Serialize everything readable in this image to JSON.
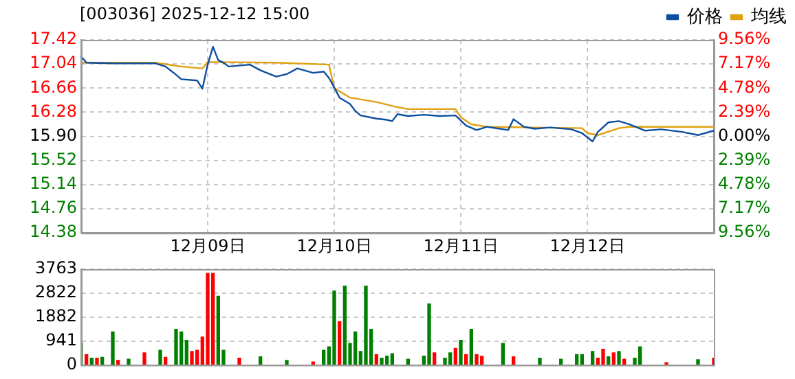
{
  "chart_data": [
    {
      "type": "line",
      "title": "[003036] 2025-12-12 15:00",
      "categories": [
        null,
        null,
        null,
        null,
        null,
        null,
        null,
        null,
        null,
        null,
        null,
        null,
        null,
        null,
        null,
        null,
        null,
        null,
        null,
        null,
        null,
        null,
        null,
        null,
        "12月09日",
        null,
        null,
        null,
        null,
        null,
        null,
        null,
        null,
        null,
        null,
        null,
        null,
        null,
        null,
        null,
        null,
        null,
        null,
        null,
        null,
        null,
        null,
        null,
        "12月10日",
        null,
        null,
        null,
        null,
        null,
        null,
        null,
        null,
        null,
        null,
        null,
        null,
        null,
        null,
        null,
        null,
        null,
        null,
        null,
        null,
        null,
        null,
        null,
        "12月11日",
        null,
        null,
        null,
        null,
        null,
        null,
        null,
        null,
        null,
        null,
        null,
        null,
        null,
        null,
        null,
        null,
        null,
        null,
        null,
        null,
        null,
        null,
        null,
        "12月12日",
        null,
        null,
        null,
        null,
        null,
        null,
        null,
        null,
        null,
        null,
        null,
        null,
        null,
        null,
        null,
        null,
        null,
        null,
        null,
        null,
        null,
        null,
        null,
        null
      ],
      "ylim": [
        14.38,
        17.42
      ],
      "yticks": [
        14.38,
        14.76,
        15.14,
        15.52,
        {
          "value": 15.9,
          "label": "15.90"
        },
        16.28,
        16.66,
        17.04,
        17.42
      ],
      "y2lim": [
        -9.56,
        9.56
      ],
      "y2ticks": [
        {
          "value": -9.56,
          "label": "9.56%"
        },
        {
          "value": -7.17,
          "label": "7.17%"
        },
        {
          "value": -4.78,
          "label": "4.78%"
        },
        {
          "value": -2.39,
          "label": "2.39%"
        },
        {
          "value": 0,
          "label": "0.00%"
        },
        {
          "value": 2.39,
          "label": "2.39%"
        },
        {
          "value": 4.78,
          "label": "4.78%"
        },
        {
          "value": 7.17,
          "label": "7.17%"
        },
        {
          "value": 9.56,
          "label": "9.56%"
        }
      ],
      "grid": true,
      "legend": "top right",
      "marker": "none",
      "series": [
        {
          "name": "价格",
          "color": "#0d4ea0",
          "values": [
            17.16,
            17.06,
            null,
            null,
            null,
            null,
            17.05,
            null,
            null,
            null,
            null,
            null,
            null,
            null,
            17.05,
            null,
            17.0,
            null,
            16.87,
            16.8,
            null,
            null,
            16.78,
            16.65,
            17.03,
            17.31,
            17.1,
            17.06,
            17.0,
            null,
            null,
            null,
            17.03,
            null,
            16.94,
            null,
            null,
            16.84,
            null,
            16.88,
            null,
            16.97,
            null,
            null,
            16.9,
            null,
            16.92,
            16.82,
            16.67,
            16.51,
            null,
            16.41,
            16.3,
            16.23,
            null,
            null,
            16.18,
            null,
            16.16,
            16.14,
            16.25,
            null,
            16.22,
            null,
            null,
            16.24,
            null,
            null,
            16.22,
            null,
            null,
            16.23,
            16.15,
            16.07,
            null,
            16.0,
            null,
            16.05,
            null,
            null,
            null,
            16.0,
            16.17,
            null,
            16.05,
            null,
            16.02,
            null,
            null,
            16.04,
            null,
            null,
            null,
            16.01,
            null,
            15.95,
            null,
            15.82,
            15.97,
            null,
            16.12,
            null,
            16.14,
            null,
            16.09,
            null,
            null,
            15.99,
            null,
            null,
            16.01,
            null,
            null,
            null,
            15.97,
            null,
            null,
            15.92,
            null,
            null,
            15.99
          ]
        },
        {
          "name": "均线",
          "color": "#e0a010",
          "values": [
            17.06,
            null,
            null,
            null,
            null,
            null,
            null,
            null,
            null,
            null,
            null,
            null,
            null,
            null,
            17.06,
            null,
            null,
            null,
            null,
            17.0,
            null,
            null,
            null,
            16.97,
            17.07,
            null,
            null,
            null,
            null,
            null,
            null,
            null,
            null,
            null,
            null,
            null,
            null,
            17.06,
            null,
            null,
            null,
            null,
            null,
            null,
            null,
            null,
            null,
            17.03,
            16.66,
            null,
            null,
            16.51,
            null,
            null,
            null,
            null,
            16.44,
            null,
            null,
            null,
            16.36,
            null,
            16.33,
            null,
            null,
            null,
            null,
            null,
            null,
            null,
            null,
            16.33,
            16.2,
            null,
            16.09,
            null,
            null,
            16.05,
            null,
            null,
            null,
            null,
            null,
            null,
            null,
            16.04,
            null,
            null,
            null,
            null,
            null,
            null,
            null,
            null,
            null,
            16.03,
            15.95,
            null,
            15.92,
            null,
            null,
            null,
            16.03,
            null,
            16.05,
            null,
            null,
            null,
            null,
            null,
            null,
            null,
            null,
            null,
            null,
            null,
            null,
            null,
            null,
            null,
            16.05
          ]
        }
      ]
    },
    {
      "type": "bar",
      "categories": [
        null,
        null,
        null,
        null,
        null,
        null,
        null,
        null,
        null,
        null,
        null,
        null,
        null,
        null,
        null,
        null,
        null,
        null,
        null,
        null,
        null,
        null,
        null,
        null,
        null,
        null,
        null,
        null,
        null,
        null,
        null,
        null,
        null,
        null,
        null,
        null,
        null,
        null,
        null,
        null,
        null,
        null,
        null,
        null,
        null,
        null,
        null,
        null,
        null,
        null,
        null,
        null,
        null,
        null,
        null,
        null,
        null,
        null,
        null,
        null,
        null,
        null,
        null,
        null,
        null,
        null,
        null,
        null,
        null,
        null,
        null,
        null,
        null,
        null,
        null,
        null,
        null,
        null,
        null,
        null,
        null,
        null,
        null,
        null,
        null,
        null,
        null,
        null,
        null,
        null,
        null,
        null,
        null,
        null,
        null,
        null,
        null,
        null,
        null,
        null,
        null,
        null,
        null,
        null,
        null,
        null,
        null,
        null,
        null,
        null,
        null,
        null,
        null,
        null,
        null,
        null,
        null,
        null,
        null,
        null,
        null
      ],
      "ylim": [
        0,
        3763
      ],
      "yticks": [
        0,
        941,
        1882,
        2822,
        3763
      ],
      "grid": "y",
      "tick_labels": "y",
      "series": [
        {
          "color": "#ff0000",
          "values": [
            null,
            410,
            null,
            270,
            null,
            null,
            null,
            180,
            null,
            null,
            null,
            null,
            480,
            null,
            null,
            null,
            300,
            null,
            null,
            null,
            null,
            530,
            580,
            1100,
            3600,
            3600,
            null,
            null,
            null,
            null,
            270,
            null,
            null,
            null,
            null,
            null,
            null,
            null,
            null,
            null,
            null,
            null,
            null,
            null,
            120,
            null,
            null,
            null,
            null,
            1700,
            null,
            null,
            null,
            null,
            null,
            null,
            410,
            null,
            null,
            null,
            null,
            null,
            null,
            null,
            null,
            null,
            null,
            480,
            null,
            null,
            null,
            650,
            null,
            410,
            null,
            410,
            340,
            null,
            null,
            null,
            null,
            null,
            320,
            null,
            null,
            null,
            null,
            null,
            null,
            null,
            null,
            null,
            null,
            null,
            null,
            null,
            null,
            null,
            270,
            620,
            null,
            480,
            null,
            230,
            null,
            null,
            null,
            null,
            null,
            null,
            null,
            90,
            null,
            null,
            null,
            null,
            null,
            null,
            null,
            null,
            270
          ]
        },
        {
          "color": "#008000",
          "values": [
            850,
            null,
            270,
            null,
            300,
            null,
            1300,
            null,
            null,
            230,
            null,
            null,
            null,
            null,
            null,
            580,
            null,
            null,
            1400,
            1300,
            970,
            null,
            null,
            null,
            null,
            null,
            2700,
            580,
            null,
            null,
            null,
            null,
            null,
            null,
            320,
            null,
            null,
            null,
            null,
            180,
            null,
            null,
            null,
            null,
            null,
            null,
            580,
            710,
            2900,
            null,
            3100,
            850,
            1300,
            530,
            3100,
            1400,
            null,
            270,
            350,
            440,
            null,
            null,
            230,
            null,
            null,
            350,
            2400,
            null,
            null,
            270,
            480,
            null,
            970,
            null,
            1400,
            null,
            null,
            null,
            null,
            null,
            850,
            null,
            null,
            null,
            null,
            null,
            null,
            270,
            null,
            null,
            null,
            230,
            null,
            null,
            410,
            410,
            null,
            530,
            null,
            null,
            320,
            null,
            530,
            null,
            null,
            270,
            710,
            null,
            null,
            null,
            null,
            null,
            null,
            null,
            null,
            null,
            null,
            210,
            null,
            null,
            null
          ]
        }
      ]
    }
  ]
}
